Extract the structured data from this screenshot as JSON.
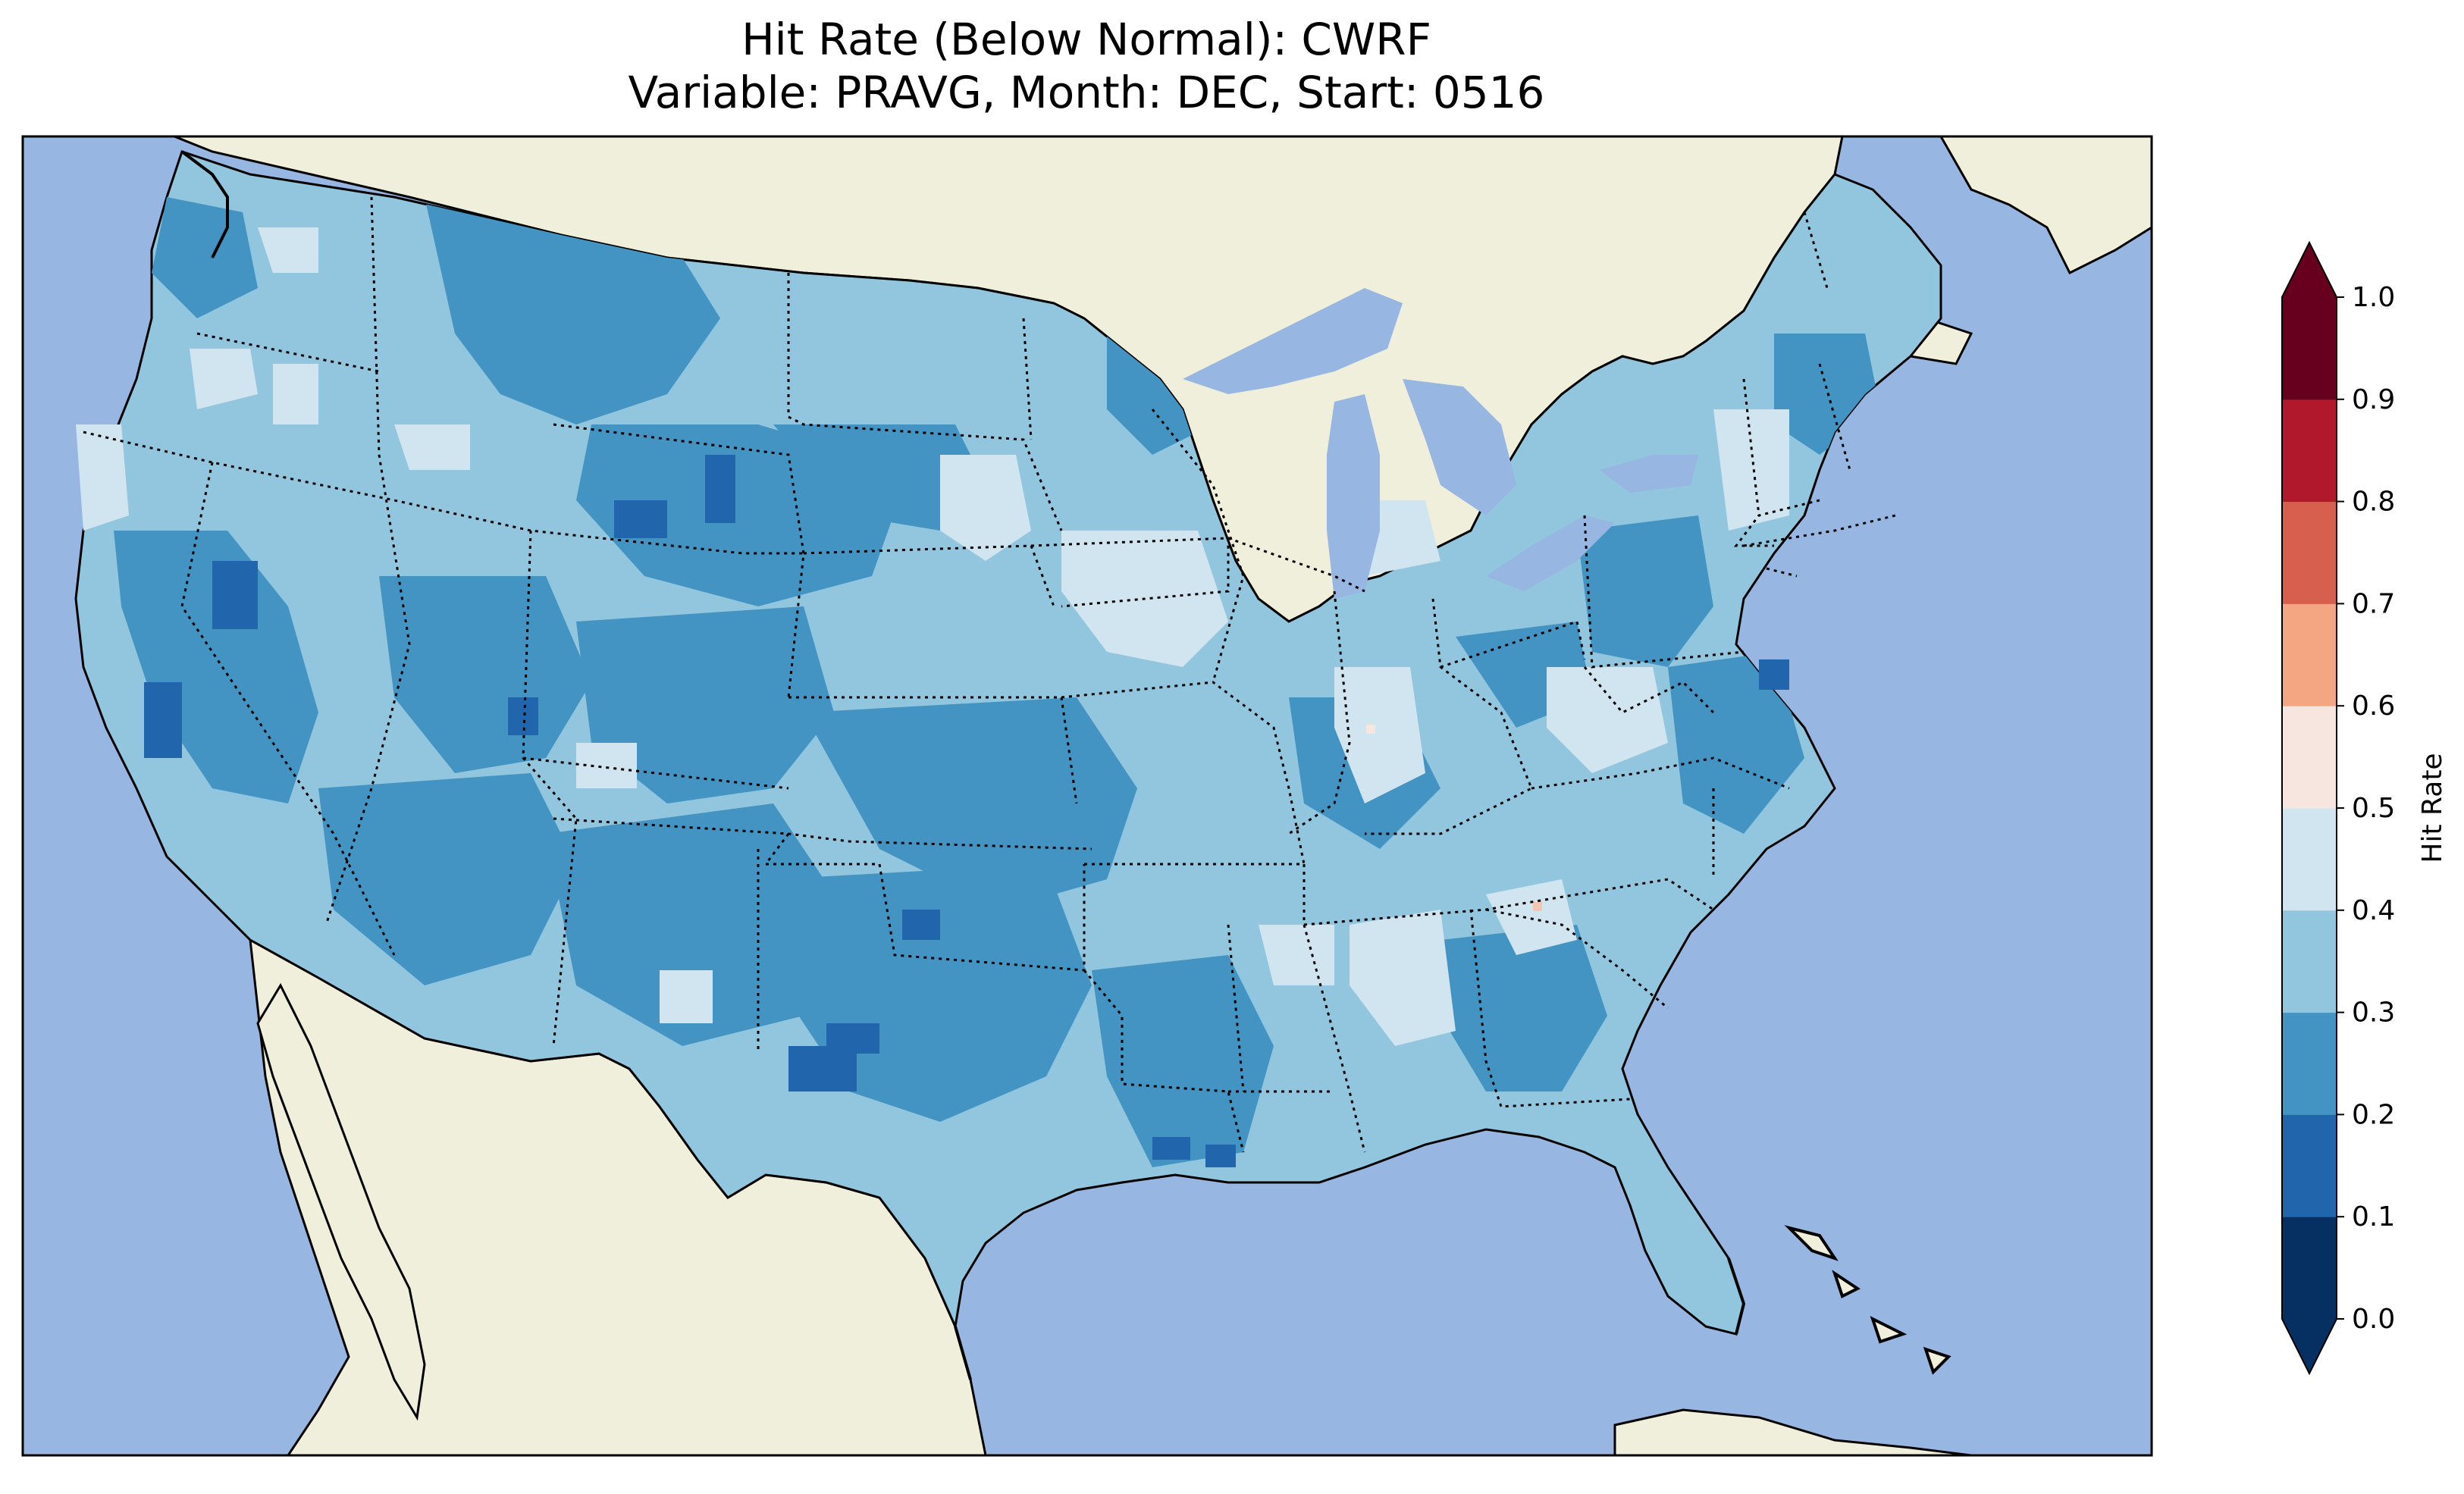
{
  "title": {
    "line1": "Hit Rate (Below Normal): CWRF",
    "line2": "Variable: PRAVG, Month: DEC, Start: 0516"
  },
  "colors": {
    "ocean": "#97b6e1",
    "land": "#efefdb",
    "map_border": "#000000",
    "hatch_light": "#d1e5f0"
  },
  "colorbar": {
    "label": "Hit Rate",
    "ticks": [
      "0.0",
      "0.1",
      "0.2",
      "0.3",
      "0.4",
      "0.5",
      "0.6",
      "0.7",
      "0.8",
      "0.9",
      "1.0"
    ],
    "bins": [
      {
        "from": 0.0,
        "to": 0.1,
        "color": "#053061"
      },
      {
        "from": 0.1,
        "to": 0.2,
        "color": "#2166ac"
      },
      {
        "from": 0.2,
        "to": 0.3,
        "color": "#4393c3"
      },
      {
        "from": 0.3,
        "to": 0.4,
        "color": "#92c5de"
      },
      {
        "from": 0.4,
        "to": 0.5,
        "color": "#d1e5f0"
      },
      {
        "from": 0.5,
        "to": 0.6,
        "color": "#f7e6df"
      },
      {
        "from": 0.6,
        "to": 0.7,
        "color": "#f4a582"
      },
      {
        "from": 0.7,
        "to": 0.8,
        "color": "#d6604d"
      },
      {
        "from": 0.8,
        "to": 0.9,
        "color": "#b2182b"
      },
      {
        "from": 0.9,
        "to": 1.0,
        "color": "#67001f"
      }
    ],
    "under_color": "#053061",
    "over_color": "#67001f"
  }
}
